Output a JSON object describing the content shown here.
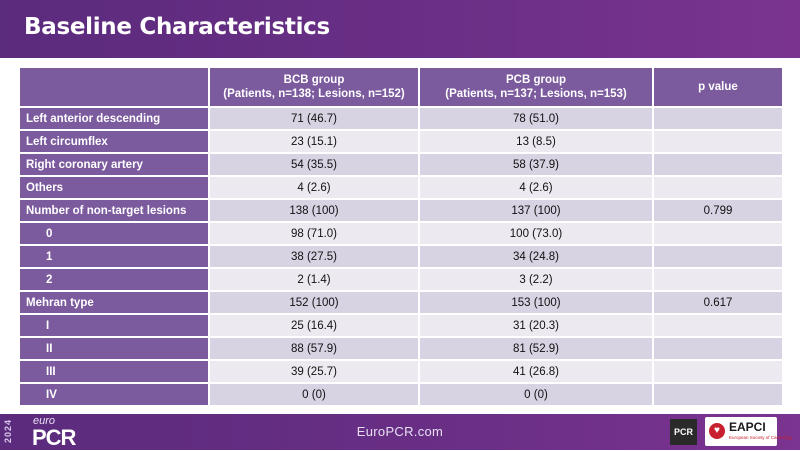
{
  "header": {
    "title": "Baseline Characteristics"
  },
  "table": {
    "columns": [
      {
        "line1": "",
        "line2": ""
      },
      {
        "line1": "BCB group",
        "line2": "(Patients, n=138; Lesions, n=152)"
      },
      {
        "line1": "PCB group",
        "line2": "(Patients, n=137; Lesions, n=153)"
      },
      {
        "line1": "p value",
        "line2": ""
      }
    ],
    "rows": [
      {
        "label": "Left anterior descending",
        "bcb": "71 (46.7)",
        "pcb": "78 (51.0)",
        "p": ""
      },
      {
        "label": "Left circumflex",
        "bcb": "23 (15.1)",
        "pcb": "13 (8.5)",
        "p": ""
      },
      {
        "label": "Right coronary artery",
        "bcb": "54 (35.5)",
        "pcb": "58 (37.9)",
        "p": ""
      },
      {
        "label": "Others",
        "bcb": "4 (2.6)",
        "pcb": "4 (2.6)",
        "p": ""
      },
      {
        "label": "Number of non-target lesions",
        "bcb": "138 (100)",
        "pcb": "137 (100)",
        "p": "0.799"
      },
      {
        "label": "0",
        "bcb": "98 (71.0)",
        "pcb": "100 (73.0)",
        "p": ""
      },
      {
        "label": "1",
        "bcb": "38 (27.5)",
        "pcb": "34 (24.8)",
        "p": ""
      },
      {
        "label": "2",
        "bcb": "2 (1.4)",
        "pcb": "3 (2.2)",
        "p": ""
      },
      {
        "label": "Mehran type",
        "bcb": "152 (100)",
        "pcb": "153 (100)",
        "p": "0.617"
      },
      {
        "label": "I",
        "bcb": "25 (16.4)",
        "pcb": "31 (20.3)",
        "p": ""
      },
      {
        "label": "II",
        "bcb": "88 (57.9)",
        "pcb": "81 (52.9)",
        "p": ""
      },
      {
        "label": "III",
        "bcb": "39 (25.7)",
        "pcb": "41 (26.8)",
        "p": ""
      },
      {
        "label": "IV",
        "bcb": "0 (0)",
        "pcb": "0 (0)",
        "p": ""
      }
    ]
  },
  "footer": {
    "year": "2024",
    "logo_prefix": "euro",
    "logo_main": "PCR",
    "website": "EuroPCR.com",
    "pcr_badge": "PCR",
    "eapci_label": "EAPCI",
    "eapci_sub": "European Society of Cardiology"
  },
  "colors": {
    "header_bg": "#5b2b7d",
    "label_cell": "#7b5a9e",
    "row_odd": "#d7d3e2",
    "row_even": "#ece9f1",
    "eapci_red": "#c8202e"
  }
}
